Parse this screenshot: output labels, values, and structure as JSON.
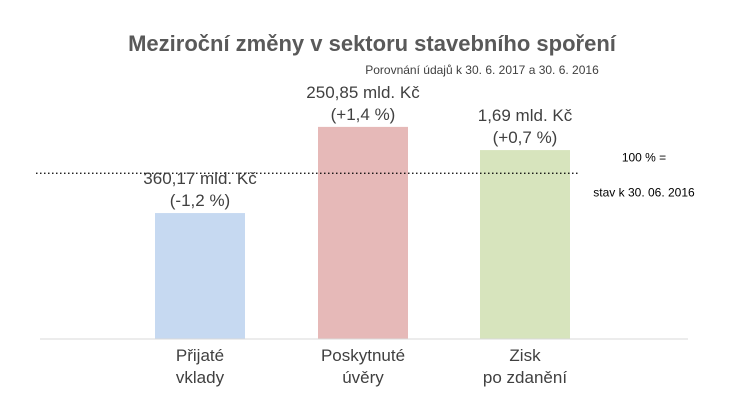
{
  "chart_data": {
    "type": "bar",
    "title": "Meziroční změny v sektoru stavebního spoření",
    "subtitle": "Porovnání údajů k 30. 6. 2017 a 30. 6. 2016",
    "xlabel": "",
    "ylabel": "",
    "categories": [
      [
        "Přijaté",
        "vklady"
      ],
      [
        "Poskytnuté",
        "úvěry"
      ],
      [
        "Zisk",
        "po zdanění"
      ]
    ],
    "values": [
      98.8,
      101.4,
      100.7
    ],
    "data_labels": [
      [
        "360,17 mld. Kč",
        "(-1,2 %)"
      ],
      [
        "250,85 mld. Kč",
        "(+1,4 %)"
      ],
      [
        "1,69 mld. Kč",
        "(+0,7 %)"
      ]
    ],
    "colors": [
      "#c6d9f1",
      "#e6b9b8",
      "#d7e4bd"
    ],
    "reference_line": {
      "value": 100,
      "label_lines": [
        "100 % =",
        "stav k 30. 06. 2016"
      ],
      "style": "dotted",
      "color": "#000000"
    },
    "ylim": [
      95.0,
      102.0
    ],
    "grid": false,
    "legend": "none"
  }
}
